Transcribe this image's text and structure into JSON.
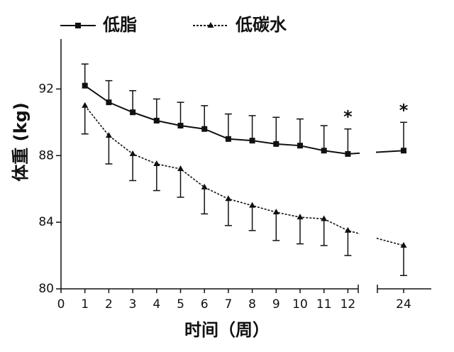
{
  "chart_data": {
    "type": "line",
    "xlabel": "时间（周）",
    "ylabel": "体重 (kg)",
    "categories": [
      "0",
      "1",
      "2",
      "3",
      "4",
      "5",
      "6",
      "7",
      "8",
      "9",
      "10",
      "11",
      "12",
      "24"
    ],
    "series": [
      {
        "name": "低脂",
        "color": "#111111",
        "dash": false,
        "marker": "square",
        "error_direction": "up",
        "values": [
          null,
          92.2,
          91.2,
          90.6,
          90.1,
          89.8,
          89.6,
          89.0,
          88.9,
          88.7,
          88.6,
          88.3,
          88.1,
          88.3
        ],
        "errors": [
          null,
          1.3,
          1.3,
          1.3,
          1.3,
          1.4,
          1.4,
          1.5,
          1.5,
          1.6,
          1.6,
          1.5,
          1.5,
          1.7
        ]
      },
      {
        "name": "低碳水",
        "color": "#111111",
        "dash": true,
        "marker": "triangle",
        "error_direction": "down",
        "values": [
          null,
          91.0,
          89.2,
          88.1,
          87.5,
          87.2,
          86.1,
          85.4,
          85.0,
          84.6,
          84.3,
          84.2,
          83.5,
          82.6
        ],
        "errors": [
          null,
          1.7,
          1.7,
          1.6,
          1.6,
          1.7,
          1.6,
          1.6,
          1.5,
          1.7,
          1.6,
          1.6,
          1.5,
          1.8
        ]
      }
    ],
    "annotations": [
      {
        "text": "*",
        "x": "12"
      },
      {
        "text": "*",
        "x": "24"
      }
    ],
    "ylim": [
      80,
      95
    ],
    "yticks": [
      80,
      84,
      88,
      92
    ],
    "legend": "top"
  }
}
